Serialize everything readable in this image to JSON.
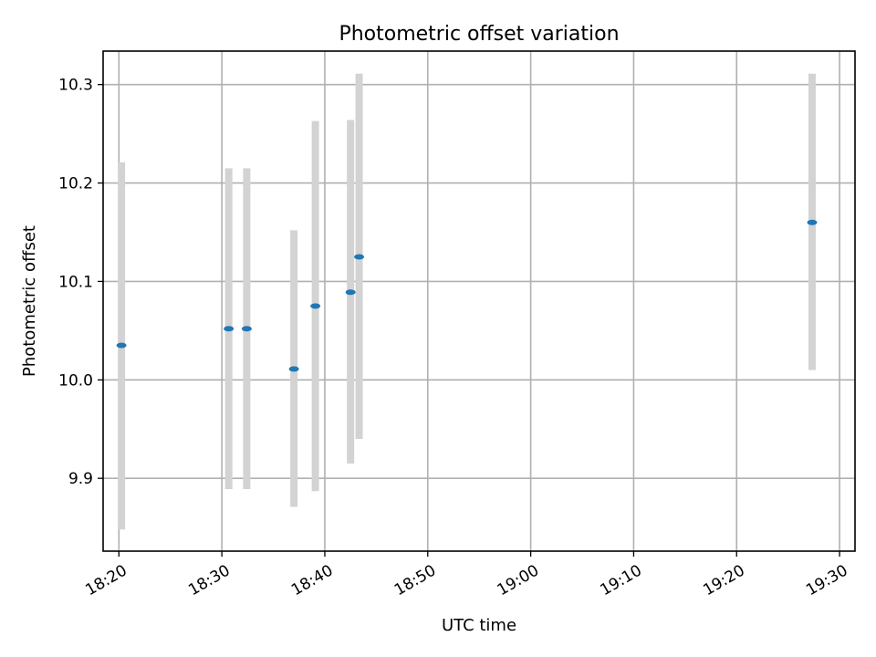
{
  "chart_data": {
    "type": "scatter",
    "title": "Photometric offset variation",
    "xlabel": "UTC time",
    "ylabel": "Photometric offset",
    "grid": true,
    "xlim": [
      "18:18:28",
      "19:31:30"
    ],
    "ylim": [
      9.826,
      10.334
    ],
    "x_ticks": [
      "18:20",
      "18:30",
      "18:40",
      "18:50",
      "19:00",
      "19:10",
      "19:20",
      "19:30"
    ],
    "y_ticks": [
      "9.9",
      "10.0",
      "10.1",
      "10.2",
      "10.3"
    ],
    "series": [
      {
        "marker_color": "#1f77b4",
        "errorbar_color": "#d3d3d3",
        "points": [
          {
            "x": "18:20:15",
            "y": 10.035,
            "ylow": 9.848,
            "yhigh": 10.221
          },
          {
            "x": "18:30:40",
            "y": 10.052,
            "ylow": 9.889,
            "yhigh": 10.215
          },
          {
            "x": "18:32:25",
            "y": 10.052,
            "ylow": 9.889,
            "yhigh": 10.215
          },
          {
            "x": "18:37:00",
            "y": 10.011,
            "ylow": 9.871,
            "yhigh": 10.152
          },
          {
            "x": "18:39:05",
            "y": 10.075,
            "ylow": 9.887,
            "yhigh": 10.263
          },
          {
            "x": "18:42:30",
            "y": 10.089,
            "ylow": 9.915,
            "yhigh": 10.264
          },
          {
            "x": "18:43:20",
            "y": 10.125,
            "ylow": 9.94,
            "yhigh": 10.311
          },
          {
            "x": "19:27:20",
            "y": 10.16,
            "ylow": 10.01,
            "yhigh": 10.311
          }
        ]
      }
    ]
  }
}
